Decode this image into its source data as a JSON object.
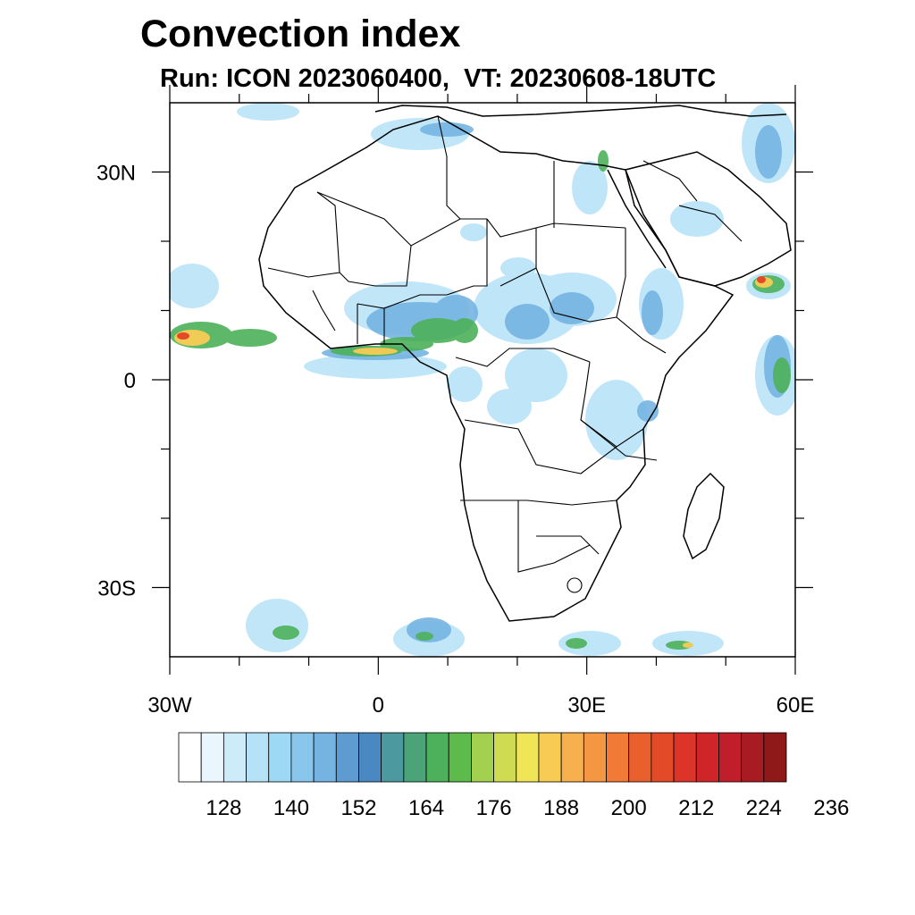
{
  "title": "Convection index",
  "subtitle": "Run: ICON 2023060400,  VT: 20230608-18UTC",
  "map": {
    "lon_range": [
      -30,
      60
    ],
    "lat_range": [
      -40,
      40
    ],
    "lat_ticks": [
      {
        "value": 30,
        "label": "30N"
      },
      {
        "value": 0,
        "label": "0"
      },
      {
        "value": -30,
        "label": "30S"
      }
    ],
    "lon_ticks": [
      {
        "value": -30,
        "label": "30W"
      },
      {
        "value": 0,
        "label": "0"
      },
      {
        "value": 30,
        "label": "30E"
      },
      {
        "value": 60,
        "label": "60E"
      }
    ]
  },
  "colorbar": {
    "colors": [
      "#ffffff",
      "#eaf6fd",
      "#cdebf9",
      "#b5e2f7",
      "#9dd8f5",
      "#88c6ec",
      "#75b4e2",
      "#5d9bd1",
      "#4a88c2",
      "#4c9aa0",
      "#4aa478",
      "#4cb15a",
      "#5cbb4a",
      "#a3d04e",
      "#cfdc52",
      "#f0e556",
      "#f8cb54",
      "#f6b04e",
      "#f59643",
      "#f07a36",
      "#ea602c",
      "#e24a28",
      "#dc3428",
      "#cf2529",
      "#bf1e2a",
      "#a81b22",
      "#8f1818"
    ],
    "tick_labels": [
      "128",
      "140",
      "152",
      "164",
      "176",
      "188",
      "200",
      "212",
      "224",
      "236"
    ]
  }
}
